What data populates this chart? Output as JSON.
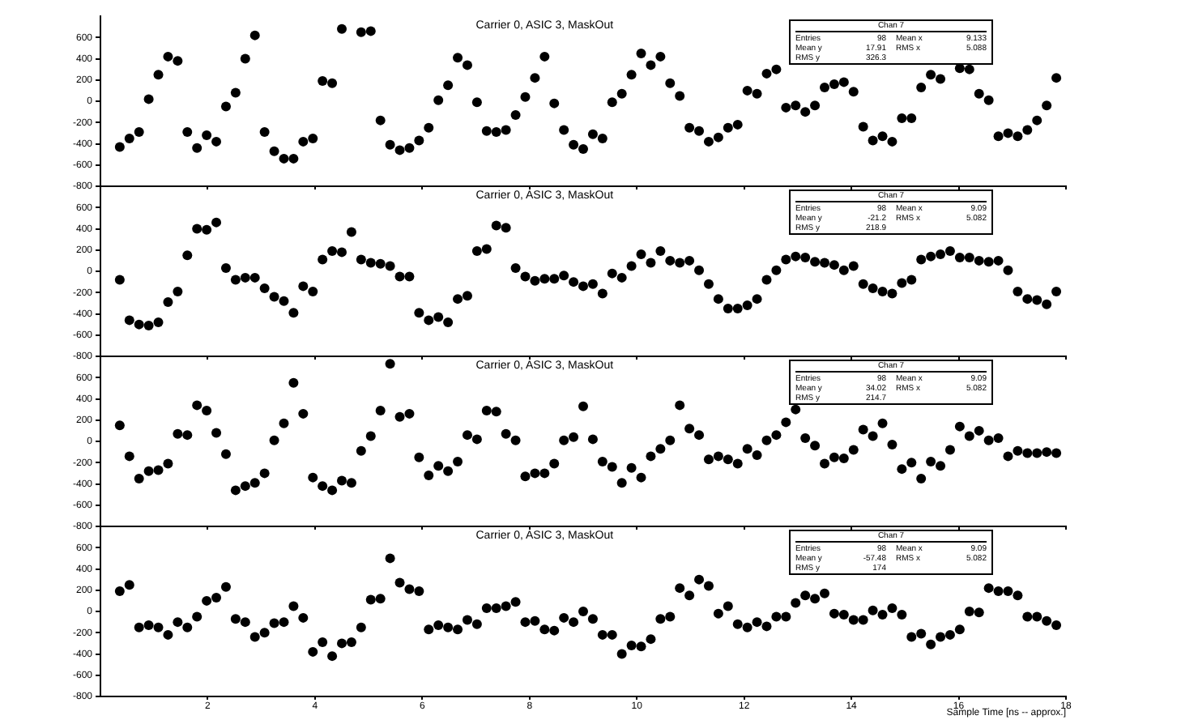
{
  "chart_data": [
    {
      "type": "scatter",
      "title": "Carrier 0, ASIC 3, MaskOut",
      "marker": "circle",
      "tick_labels": "y",
      "xlim": [
        0,
        18
      ],
      "xticks": [
        2,
        4,
        6,
        8,
        10,
        12,
        14,
        16,
        18
      ],
      "ylim": [
        -800,
        800
      ],
      "yticks": [
        -800,
        -600,
        -400,
        -200,
        0,
        200,
        400,
        600
      ],
      "annotations": [
        "Chan 7",
        "Entries",
        "98",
        "Mean x",
        "9.133",
        "Mean y",
        "17.91",
        "RMS x",
        "5.088",
        "RMS y",
        "326.3"
      ],
      "x": [
        0.36,
        0.54,
        0.72,
        0.9,
        1.08,
        1.26,
        1.44,
        1.62,
        1.8,
        1.98,
        2.16,
        2.34,
        2.52,
        2.7,
        2.88,
        3.06,
        3.24,
        3.42,
        3.6,
        3.78,
        3.96,
        4.14,
        4.32,
        4.5,
        4.68,
        4.86,
        5.04,
        5.22,
        5.4,
        5.58,
        5.76,
        5.94,
        6.12,
        6.3,
        6.48,
        6.66,
        6.84,
        7.02,
        7.2,
        7.38,
        7.56,
        7.74,
        7.92,
        8.1,
        8.28,
        8.46,
        8.64,
        8.82,
        9.0,
        9.18,
        9.36,
        9.54,
        9.72,
        9.9,
        10.08,
        10.26,
        10.44,
        10.62,
        10.8,
        10.98,
        11.16,
        11.34,
        11.52,
        11.7,
        11.88,
        12.06,
        12.24,
        12.42,
        12.6,
        12.78,
        12.96,
        13.14,
        13.32,
        13.5,
        13.68,
        13.86,
        14.04,
        14.22,
        14.4,
        14.58,
        14.76,
        14.94,
        15.12,
        15.3,
        15.48,
        15.66,
        15.84,
        16.02,
        16.2,
        16.38,
        16.56,
        16.74,
        16.92,
        17.1,
        17.28,
        17.46,
        17.64,
        17.82
      ],
      "series": [
        {
          "color": "#000000",
          "values": [
            -430,
            -350,
            -290,
            20,
            250,
            420,
            380,
            -290,
            -440,
            -320,
            -380,
            -50,
            80,
            400,
            620,
            -290,
            -470,
            -540,
            -540,
            -380,
            -350,
            190,
            170,
            680,
            null,
            650,
            660,
            -180,
            -410,
            -460,
            -440,
            -370,
            -250,
            10,
            150,
            410,
            340,
            -10,
            -280,
            -290,
            -270,
            -130,
            40,
            220,
            420,
            -20,
            -270,
            -410,
            -450,
            -310,
            -350,
            -10,
            70,
            250,
            450,
            340,
            420,
            170,
            50,
            -250,
            -280,
            -380,
            -340,
            -250,
            -220,
            100,
            70,
            260,
            300,
            -60,
            -40,
            -100,
            -40,
            130,
            160,
            180,
            90,
            -240,
            -370,
            -330,
            -380,
            -160,
            -160,
            130,
            250,
            210,
            null,
            310,
            300,
            70,
            10,
            -330,
            -300,
            -330,
            -270,
            -180,
            -40,
            220
          ]
        }
      ]
    },
    {
      "type": "scatter",
      "title": "Carrier 0, ASIC 3, MaskOut",
      "marker": "circle",
      "tick_labels": "y",
      "xlim": [
        0,
        18
      ],
      "xticks": [
        2,
        4,
        6,
        8,
        10,
        12,
        14,
        16,
        18
      ],
      "ylim": [
        -800,
        800
      ],
      "yticks": [
        -800,
        -600,
        -400,
        -200,
        0,
        200,
        400,
        600
      ],
      "annotations": [
        "Chan 7",
        "Entries",
        "98",
        "Mean x",
        "9.09",
        "Mean y",
        "-21.2",
        "RMS x",
        "5.082",
        "RMS y",
        "218.9"
      ],
      "x": [
        0.36,
        0.54,
        0.72,
        0.9,
        1.08,
        1.26,
        1.44,
        1.62,
        1.8,
        1.98,
        2.16,
        2.34,
        2.52,
        2.7,
        2.88,
        3.06,
        3.24,
        3.42,
        3.6,
        3.78,
        3.96,
        4.14,
        4.32,
        4.5,
        4.68,
        4.86,
        5.04,
        5.22,
        5.4,
        5.58,
        5.76,
        5.94,
        6.12,
        6.3,
        6.48,
        6.66,
        6.84,
        7.02,
        7.2,
        7.38,
        7.56,
        7.74,
        7.92,
        8.1,
        8.28,
        8.46,
        8.64,
        8.82,
        9.0,
        9.18,
        9.36,
        9.54,
        9.72,
        9.9,
        10.08,
        10.26,
        10.44,
        10.62,
        10.8,
        10.98,
        11.16,
        11.34,
        11.52,
        11.7,
        11.88,
        12.06,
        12.24,
        12.42,
        12.6,
        12.78,
        12.96,
        13.14,
        13.32,
        13.5,
        13.68,
        13.86,
        14.04,
        14.22,
        14.4,
        14.58,
        14.76,
        14.94,
        15.12,
        15.3,
        15.48,
        15.66,
        15.84,
        16.02,
        16.2,
        16.38,
        16.56,
        16.74,
        16.92,
        17.1,
        17.28,
        17.46,
        17.64,
        17.82
      ],
      "series": [
        {
          "color": "#000000",
          "values": [
            -80,
            -460,
            -500,
            -510,
            -480,
            -290,
            -190,
            150,
            400,
            390,
            460,
            30,
            -80,
            -60,
            -60,
            -160,
            -240,
            -280,
            -390,
            -140,
            -190,
            110,
            190,
            180,
            370,
            110,
            80,
            70,
            50,
            -50,
            -50,
            -390,
            -460,
            -430,
            -480,
            -260,
            -230,
            190,
            210,
            430,
            410,
            30,
            -50,
            -90,
            -70,
            -70,
            -40,
            -100,
            -140,
            -120,
            -210,
            -20,
            -60,
            50,
            160,
            80,
            190,
            100,
            80,
            100,
            10,
            -120,
            -260,
            -350,
            -350,
            -320,
            -260,
            -80,
            10,
            110,
            140,
            130,
            90,
            80,
            60,
            10,
            50,
            -120,
            -160,
            -190,
            -210,
            -110,
            -80,
            110,
            140,
            160,
            190,
            130,
            130,
            100,
            90,
            100,
            10,
            -190,
            -260,
            -270,
            -310,
            -190
          ]
        }
      ]
    },
    {
      "type": "scatter",
      "title": "Carrier 0, ASIC 3, MaskOut",
      "marker": "circle",
      "tick_labels": "y",
      "xlim": [
        0,
        18
      ],
      "xticks": [
        2,
        4,
        6,
        8,
        10,
        12,
        14,
        16,
        18
      ],
      "ylim": [
        -800,
        800
      ],
      "yticks": [
        -800,
        -600,
        -400,
        -200,
        0,
        200,
        400,
        600
      ],
      "annotations": [
        "Chan 7",
        "Entries",
        "98",
        "Mean x",
        "9.09",
        "Mean y",
        "34.02",
        "RMS x",
        "5.082",
        "RMS y",
        "214.7"
      ],
      "x": [
        0.36,
        0.54,
        0.72,
        0.9,
        1.08,
        1.26,
        1.44,
        1.62,
        1.8,
        1.98,
        2.16,
        2.34,
        2.52,
        2.7,
        2.88,
        3.06,
        3.24,
        3.42,
        3.6,
        3.78,
        3.96,
        4.14,
        4.32,
        4.5,
        4.68,
        4.86,
        5.04,
        5.22,
        5.4,
        5.58,
        5.76,
        5.94,
        6.12,
        6.3,
        6.48,
        6.66,
        6.84,
        7.02,
        7.2,
        7.38,
        7.56,
        7.74,
        7.92,
        8.1,
        8.28,
        8.46,
        8.64,
        8.82,
        9.0,
        9.18,
        9.36,
        9.54,
        9.72,
        9.9,
        10.08,
        10.26,
        10.44,
        10.62,
        10.8,
        10.98,
        11.16,
        11.34,
        11.52,
        11.7,
        11.88,
        12.06,
        12.24,
        12.42,
        12.6,
        12.78,
        12.96,
        13.14,
        13.32,
        13.5,
        13.68,
        13.86,
        14.04,
        14.22,
        14.4,
        14.58,
        14.76,
        14.94,
        15.12,
        15.3,
        15.48,
        15.66,
        15.84,
        16.02,
        16.2,
        16.38,
        16.56,
        16.74,
        16.92,
        17.1,
        17.28,
        17.46,
        17.64,
        17.82
      ],
      "series": [
        {
          "color": "#000000",
          "values": [
            150,
            -140,
            -350,
            -280,
            -270,
            -210,
            70,
            60,
            340,
            290,
            80,
            -120,
            -460,
            -420,
            -390,
            -300,
            10,
            170,
            550,
            260,
            -340,
            -420,
            -460,
            -370,
            -390,
            -90,
            50,
            290,
            730,
            230,
            260,
            -150,
            -320,
            -230,
            -280,
            -190,
            60,
            20,
            290,
            280,
            70,
            10,
            -330,
            -300,
            -300,
            -210,
            10,
            40,
            330,
            20,
            -190,
            -240,
            -390,
            -250,
            -340,
            -140,
            -70,
            10,
            340,
            120,
            60,
            -170,
            -140,
            -170,
            -210,
            -70,
            -130,
            10,
            60,
            180,
            300,
            30,
            -40,
            -210,
            -150,
            -160,
            -80,
            110,
            50,
            170,
            -30,
            -260,
            -200,
            -350,
            -190,
            -230,
            -80,
            140,
            50,
            100,
            10,
            30,
            -140,
            -90,
            -110,
            -110,
            -100,
            -110
          ]
        }
      ]
    },
    {
      "type": "scatter",
      "title": "Carrier 0, ASIC 3, MaskOut",
      "xlabel": "Sample Time [ns -- approx.]",
      "marker": "circle",
      "xlim": [
        0,
        18
      ],
      "xticks": [
        2,
        4,
        6,
        8,
        10,
        12,
        14,
        16,
        18
      ],
      "ylim": [
        -800,
        800
      ],
      "yticks": [
        -800,
        -600,
        -400,
        -200,
        0,
        200,
        400,
        600
      ],
      "annotations": [
        "Chan 7",
        "Entries",
        "98",
        "Mean x",
        "9.09",
        "Mean y",
        "-57.48",
        "RMS x",
        "5.082",
        "RMS y",
        "174"
      ],
      "x": [
        0.36,
        0.54,
        0.72,
        0.9,
        1.08,
        1.26,
        1.44,
        1.62,
        1.8,
        1.98,
        2.16,
        2.34,
        2.52,
        2.7,
        2.88,
        3.06,
        3.24,
        3.42,
        3.6,
        3.78,
        3.96,
        4.14,
        4.32,
        4.5,
        4.68,
        4.86,
        5.04,
        5.22,
        5.4,
        5.58,
        5.76,
        5.94,
        6.12,
        6.3,
        6.48,
        6.66,
        6.84,
        7.02,
        7.2,
        7.38,
        7.56,
        7.74,
        7.92,
        8.1,
        8.28,
        8.46,
        8.64,
        8.82,
        9.0,
        9.18,
        9.36,
        9.54,
        9.72,
        9.9,
        10.08,
        10.26,
        10.44,
        10.62,
        10.8,
        10.98,
        11.16,
        11.34,
        11.52,
        11.7,
        11.88,
        12.06,
        12.24,
        12.42,
        12.6,
        12.78,
        12.96,
        13.14,
        13.32,
        13.5,
        13.68,
        13.86,
        14.04,
        14.22,
        14.4,
        14.58,
        14.76,
        14.94,
        15.12,
        15.3,
        15.48,
        15.66,
        15.84,
        16.02,
        16.2,
        16.38,
        16.56,
        16.74,
        16.92,
        17.1,
        17.28,
        17.46,
        17.64,
        17.82
      ],
      "series": [
        {
          "color": "#000000",
          "values": [
            190,
            250,
            -150,
            -130,
            -150,
            -220,
            -100,
            -150,
            -50,
            100,
            130,
            230,
            -70,
            -100,
            -240,
            -200,
            -110,
            -100,
            50,
            -60,
            -380,
            -290,
            -420,
            -300,
            -290,
            -150,
            110,
            120,
            500,
            270,
            210,
            190,
            -170,
            -130,
            -150,
            -170,
            -80,
            -120,
            30,
            30,
            50,
            90,
            -100,
            -90,
            -170,
            -180,
            -60,
            -100,
            0,
            -70,
            -220,
            -220,
            -400,
            -320,
            -330,
            -260,
            -70,
            -50,
            220,
            150,
            300,
            240,
            -20,
            50,
            -120,
            -150,
            -100,
            -140,
            -50,
            -50,
            80,
            150,
            120,
            170,
            -20,
            -30,
            -80,
            -80,
            10,
            -30,
            30,
            -30,
            -240,
            -210,
            -310,
            -240,
            -220,
            -170,
            0,
            -10,
            220,
            190,
            190,
            150,
            -50,
            -50,
            -90,
            -130
          ]
        }
      ]
    }
  ]
}
